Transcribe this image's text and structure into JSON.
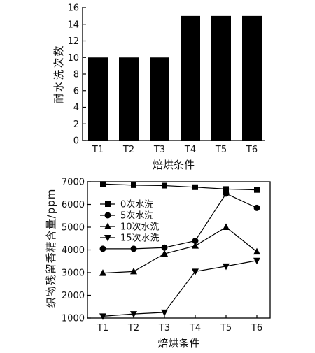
{
  "chart_data": [
    {
      "type": "bar",
      "categories": [
        "T1",
        "T2",
        "T3",
        "T4",
        "T5",
        "T6"
      ],
      "values": [
        10,
        10,
        10,
        15,
        15,
        15
      ],
      "xlabel": "焙烘条件",
      "ylabel": "耐水洗次数",
      "ylim": [
        0,
        16
      ],
      "yticks": [
        0,
        2,
        4,
        6,
        8,
        10,
        12,
        14,
        16
      ],
      "color": "#000000"
    },
    {
      "type": "line",
      "categories": [
        "T1",
        "T2",
        "T3",
        "T4",
        "T5",
        "T6"
      ],
      "xlabel": "焙烘条件",
      "ylabel": "织物残留香精含量/ppm",
      "ylim": [
        1000,
        7000
      ],
      "yticks": [
        1000,
        2000,
        3000,
        4000,
        5000,
        6000,
        7000
      ],
      "legend_position": "upper-left",
      "series": [
        {
          "name": "0次水洗",
          "marker": "square",
          "values": [
            6900,
            6850,
            6830,
            6760,
            6680,
            6640
          ]
        },
        {
          "name": "5次水洗",
          "marker": "circle",
          "values": [
            4050,
            4050,
            4100,
            4400,
            6480,
            5850
          ]
        },
        {
          "name": "10次水洗",
          "marker": "triangle-up",
          "values": [
            2980,
            3050,
            3830,
            4180,
            5000,
            3920
          ]
        },
        {
          "name": "15次水洗",
          "marker": "triangle-down",
          "values": [
            1080,
            1180,
            1250,
            3050,
            3280,
            3530
          ]
        }
      ]
    }
  ]
}
